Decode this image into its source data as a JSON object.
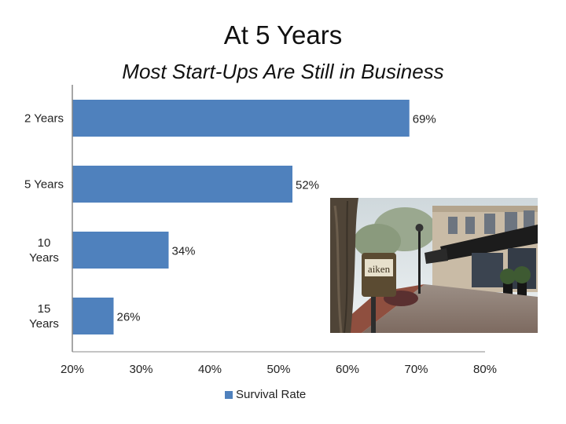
{
  "title": "At 5 Years",
  "subtitle": "Most Start-Ups Are Still in Business",
  "colors": {
    "bar": "#4f81bd",
    "axis": "#888888"
  },
  "chart_data": {
    "type": "bar",
    "orientation": "horizontal",
    "categories": [
      "2 Years",
      "5 Years",
      "10 Years",
      "15 Years"
    ],
    "category_label_lines": [
      [
        "2 Years"
      ],
      [
        "5 Years"
      ],
      [
        "10",
        "Years"
      ],
      [
        "15",
        "Years"
      ]
    ],
    "series": [
      {
        "name": "Survival Rate",
        "values": [
          69,
          52,
          34,
          26
        ],
        "labels": [
          "69%",
          "52%",
          "34%",
          "26%"
        ]
      }
    ],
    "xlim": [
      20,
      80
    ],
    "x_ticks": [
      20,
      30,
      40,
      50,
      60,
      70,
      80
    ],
    "x_tick_labels": [
      "20%",
      "30%",
      "40%",
      "50%",
      "60%",
      "70%",
      "80%"
    ],
    "legend_position": "bottom",
    "grid": false
  },
  "legend": {
    "label": "Survival Rate"
  },
  "photo": {
    "icon": "street-scene-photo",
    "sign_text": "aiken"
  }
}
